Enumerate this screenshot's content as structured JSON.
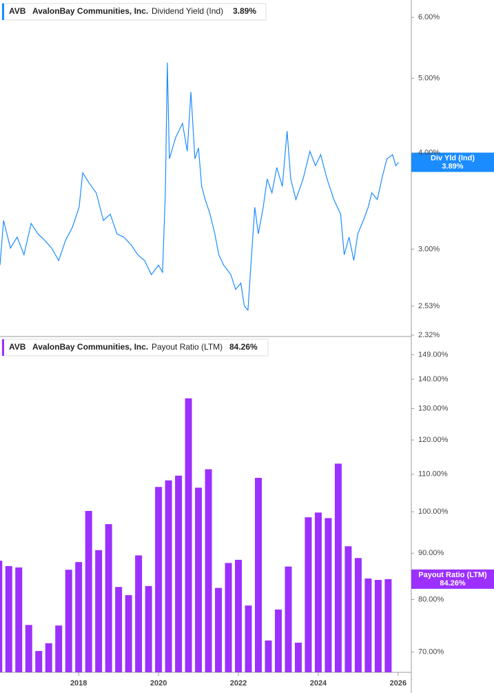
{
  "chart_data": [
    {
      "type": "line",
      "ticker": "AVB",
      "company": "AvalonBay Communities, Inc.",
      "last_value_label": "3.89%",
      "current_label": "Div Yld (Ind)",
      "log_scale": true,
      "xlim": [
        2016.03,
        2026.33
      ],
      "ylim": [
        2.32,
        6.32
      ],
      "yticks": [
        {
          "value": 6,
          "label": "6.00%"
        },
        {
          "value": 5,
          "label": "5.00%"
        },
        {
          "value": 4,
          "label": "4.00%"
        },
        {
          "value": 3,
          "label": "3.00%"
        },
        {
          "value": 2.53,
          "label": "2.53%"
        },
        {
          "value": 2.32,
          "label": "2.32%"
        }
      ],
      "series": [
        {
          "name": "Dividend Yield (Ind)",
          "color": "#1a8cff",
          "x": [
            2016.03,
            2016.12,
            2016.29,
            2016.46,
            2016.63,
            2016.81,
            2016.98,
            2017.15,
            2017.32,
            2017.5,
            2017.67,
            2017.84,
            2018.01,
            2018.1,
            2018.27,
            2018.44,
            2018.62,
            2018.79,
            2018.96,
            2019.13,
            2019.31,
            2019.48,
            2019.65,
            2019.82,
            2020.0,
            2020.1,
            2020.17,
            2020.22,
            2020.27,
            2020.43,
            2020.6,
            2020.72,
            2020.81,
            2020.91,
            2021.0,
            2021.08,
            2021.17,
            2021.29,
            2021.41,
            2021.51,
            2021.63,
            2021.81,
            2021.93,
            2022.06,
            2022.15,
            2022.24,
            2022.32,
            2022.41,
            2022.5,
            2022.62,
            2022.72,
            2022.84,
            2022.96,
            2023.1,
            2023.22,
            2023.31,
            2023.44,
            2023.62,
            2023.79,
            2023.93,
            2024.06,
            2024.22,
            2024.39,
            2024.56,
            2024.65,
            2024.77,
            2024.89,
            2024.99,
            2025.13,
            2025.25,
            2025.34,
            2025.48,
            2025.6,
            2025.72,
            2025.86,
            2025.94,
            2026.01
          ],
          "values": [
            2.86,
            3.27,
            3.01,
            3.11,
            2.95,
            3.24,
            3.14,
            3.08,
            3.01,
            2.9,
            3.08,
            3.2,
            3.4,
            3.77,
            3.65,
            3.55,
            3.27,
            3.33,
            3.14,
            3.11,
            3.04,
            2.95,
            2.9,
            2.78,
            2.86,
            2.8,
            3.55,
            5.24,
            3.93,
            4.19,
            4.37,
            4.02,
            4.8,
            3.93,
            4.06,
            3.62,
            3.48,
            3.33,
            3.14,
            2.95,
            2.86,
            2.78,
            2.66,
            2.71,
            2.53,
            2.5,
            2.9,
            3.4,
            3.14,
            3.4,
            3.7,
            3.55,
            3.83,
            3.62,
            4.27,
            3.7,
            3.48,
            3.7,
            4.02,
            3.85,
            3.98,
            3.7,
            3.48,
            3.33,
            2.95,
            3.11,
            2.9,
            3.14,
            3.27,
            3.4,
            3.55,
            3.48,
            3.72,
            3.93,
            3.98,
            3.85,
            3.89
          ]
        }
      ]
    },
    {
      "type": "bar",
      "ticker": "AVB",
      "company": "AvalonBay Communities, Inc.",
      "last_value_label": "84.26%",
      "log_scale": true,
      "xlim": [
        2016.03,
        2026.33
      ],
      "ylim": [
        66.5,
        155
      ],
      "xticks": [
        2018,
        2020,
        2022,
        2024,
        2026
      ],
      "yticks": [
        {
          "value": 149,
          "label": "149.00%"
        },
        {
          "value": 140,
          "label": "140.00%"
        },
        {
          "value": 130,
          "label": "130.00%"
        },
        {
          "value": 120,
          "label": "120.00%"
        },
        {
          "value": 110,
          "label": "110.00%"
        },
        {
          "value": 100,
          "label": "100.00%"
        },
        {
          "value": 90,
          "label": "90.00%"
        },
        {
          "value": 80,
          "label": "80.00%"
        },
        {
          "value": 70,
          "label": "70.00%"
        }
      ],
      "series": [
        {
          "name": "Payout Ratio (LTM)",
          "color": "#9b30ff",
          "x": [
            2016,
            2016.25,
            2016.5,
            2016.75,
            2017,
            2017.25,
            2017.5,
            2017.75,
            2018,
            2018.25,
            2018.5,
            2018.75,
            2019,
            2019.25,
            2019.5,
            2019.75,
            2020,
            2020.25,
            2020.5,
            2020.75,
            2021,
            2021.25,
            2021.5,
            2021.75,
            2022,
            2022.25,
            2022.5,
            2022.75,
            2023,
            2023.25,
            2023.5,
            2023.75,
            2024,
            2024.25,
            2024.5,
            2024.75,
            2025,
            2025.25,
            2025.5,
            2025.75
          ],
          "values": [
            88.3,
            87.1,
            86.8,
            75,
            70.2,
            71.6,
            74.9,
            86.3,
            88,
            100.2,
            90.7,
            96.9,
            82.6,
            80.9,
            89.5,
            82.8,
            106.5,
            108.3,
            109.6,
            133.4,
            106.3,
            111.4,
            82.4,
            87.8,
            88.5,
            78.8,
            109,
            72.1,
            78,
            87,
            71.7,
            98.6,
            99.8,
            98.4,
            113,
            91.6,
            88.9,
            84.4,
            84.1,
            84.26
          ]
        }
      ]
    }
  ]
}
